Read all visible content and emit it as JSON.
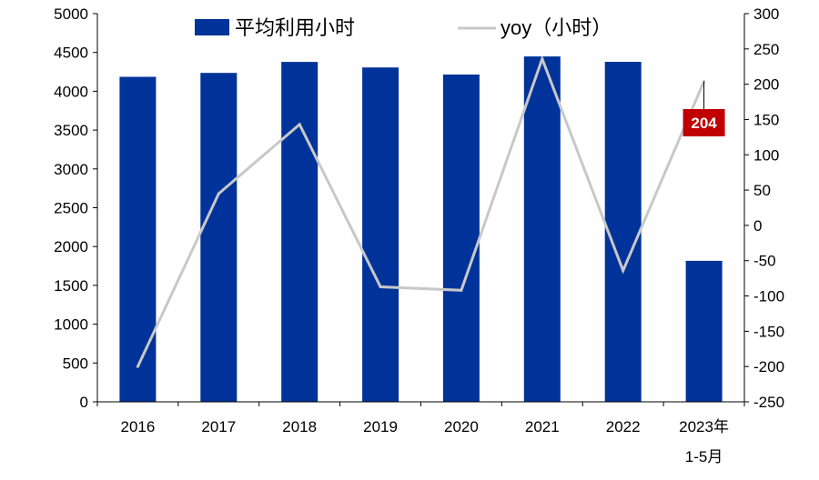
{
  "chart_data": {
    "type": "bar",
    "categories": [
      "2016",
      "2017",
      "2018",
      "2019",
      "2020",
      "2021",
      "2022",
      "2023年\n1-5月"
    ],
    "series": [
      {
        "name": "平均利用小时",
        "type": "bar",
        "axis": "left",
        "color": "#003399",
        "values": [
          4186,
          4236,
          4378,
          4307,
          4216,
          4448,
          4379,
          1816
        ]
      },
      {
        "name": "yoy（小时）",
        "type": "line",
        "axis": "right",
        "color": "#C8C8C8",
        "values": [
          -200,
          45,
          143,
          -87,
          -92,
          236,
          -64,
          204
        ]
      }
    ],
    "y_left": {
      "min": 0,
      "max": 5000,
      "ticks": [
        "0",
        "500",
        "1000",
        "1500",
        "2000",
        "2500",
        "3000",
        "3500",
        "4000",
        "4500",
        "5000"
      ]
    },
    "y_right": {
      "min": -250,
      "max": 300,
      "ticks": [
        "-250",
        "-200",
        "-150",
        "-100",
        "-50",
        "0",
        "50",
        "100",
        "150",
        "200",
        "250",
        "300"
      ]
    },
    "annotation": {
      "text": "204",
      "series": "yoy（小时）",
      "category_index": 7,
      "background": "#C00000"
    },
    "legend_position": "top",
    "grid": false
  }
}
